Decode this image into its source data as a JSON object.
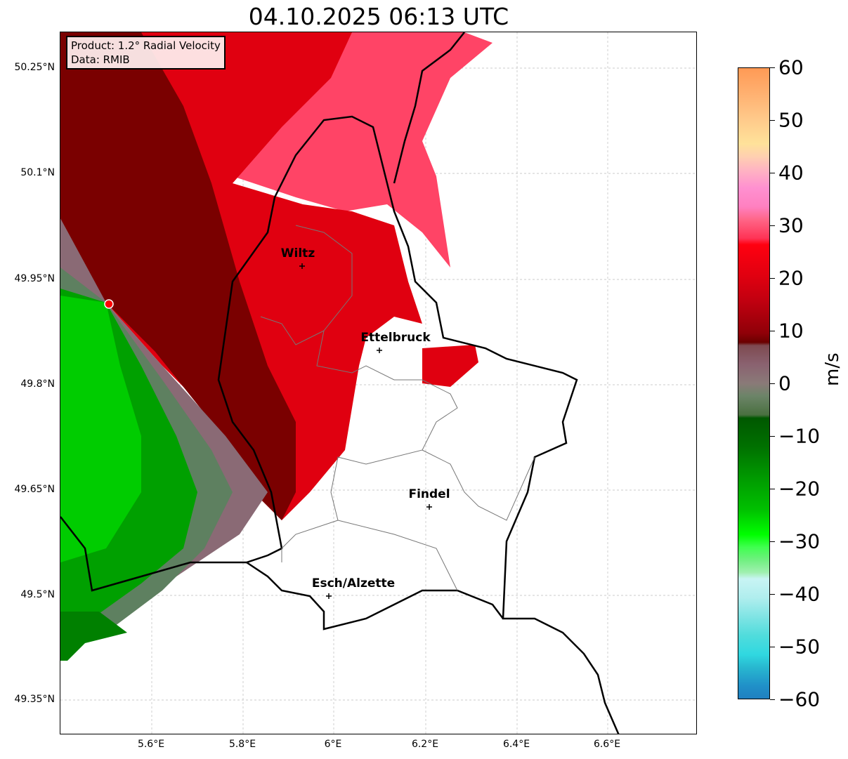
{
  "title": "04.10.2025 06:13 UTC",
  "info": {
    "product": "Product: 1.2° Radial Velocity",
    "data": "Data: RMIB"
  },
  "lat_ticks": [
    "50.25°N",
    "50.1°N",
    "49.95°N",
    "49.8°N",
    "49.65°N",
    "49.5°N",
    "49.35°N"
  ],
  "lon_ticks": [
    "5.6°E",
    "5.8°E",
    "6°E",
    "6.2°E",
    "6.4°E",
    "6.6°E"
  ],
  "cities": [
    "Wiltz",
    "Ettelbruck",
    "Findel",
    "Esch/Alzette"
  ],
  "colorbar": {
    "ticks": [
      "60",
      "50",
      "40",
      "30",
      "20",
      "10",
      "0",
      "−10",
      "−20",
      "−30",
      "−40",
      "−50",
      "−60"
    ],
    "unit": "m/s",
    "range": [
      -60,
      60
    ]
  },
  "colors": {
    "approaching": "#00c000",
    "receding": "#e00010",
    "radar_site": "#ff0000"
  }
}
